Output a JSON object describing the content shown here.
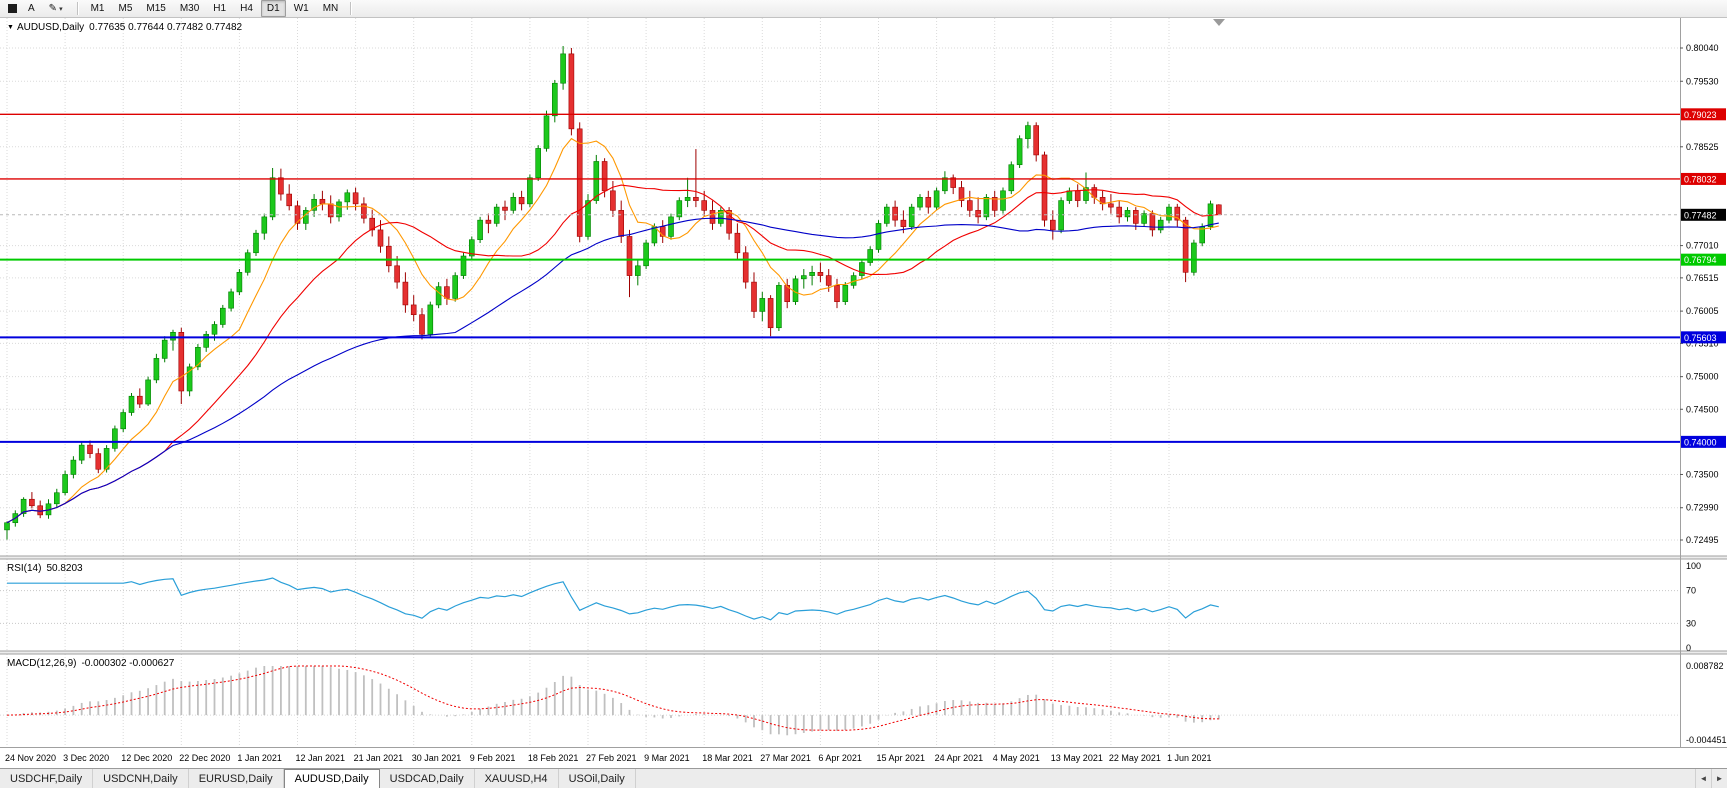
{
  "toolbar": {
    "font_button": "A",
    "draw_button": "✎",
    "dropdown_caret": "▾",
    "timeframes": [
      "M1",
      "M5",
      "M15",
      "M30",
      "H1",
      "H4",
      "D1",
      "W1",
      "MN"
    ],
    "active_timeframe": "D1"
  },
  "chart": {
    "title": "AUDUSD,Daily",
    "ohlc": "0.77635 0.77644 0.77482 0.77482",
    "collapse_marker": "▼"
  },
  "chart_data": {
    "type": "candlestick",
    "symbol": "AUDUSD",
    "period": "Daily",
    "y_min": 0.72495,
    "y_max": 0.8004,
    "y_axis_labels": [
      "0.80040",
      "0.79530",
      "0.78525",
      "0.77010",
      "0.76515",
      "0.76005",
      "0.75510",
      "0.75000",
      "0.74500",
      "0.73500",
      "0.72990",
      "0.72495"
    ],
    "x_labels": [
      "24 Nov 2020",
      "3 Dec 2020",
      "12 Dec 2020",
      "22 Dec 2020",
      "1 Jan 2021",
      "12 Jan 2021",
      "21 Jan 2021",
      "30 Jan 2021",
      "9 Feb 2021",
      "18 Feb 2021",
      "27 Feb 2021",
      "9 Mar 2021",
      "18 Mar 2021",
      "27 Mar 2021",
      "6 Apr 2021",
      "15 Apr 2021",
      "24 Apr 2021",
      "4 May 2021",
      "13 May 2021",
      "22 May 2021",
      "1 Jun 2021"
    ],
    "bars_per_x_label": 7,
    "bull_color": "#1cc81c",
    "bear_color": "#e53030",
    "candles": [
      [
        0.7265,
        0.7278,
        0.725,
        0.7276
      ],
      [
        0.7276,
        0.7295,
        0.727,
        0.729
      ],
      [
        0.729,
        0.7315,
        0.7285,
        0.7312
      ],
      [
        0.7312,
        0.7323,
        0.7298,
        0.7302
      ],
      [
        0.7302,
        0.731,
        0.7283,
        0.7288
      ],
      [
        0.7288,
        0.7312,
        0.7282,
        0.7305
      ],
      [
        0.7305,
        0.7328,
        0.73,
        0.7322
      ],
      [
        0.7322,
        0.7356,
        0.7318,
        0.735
      ],
      [
        0.735,
        0.7378,
        0.7344,
        0.7372
      ],
      [
        0.7372,
        0.74,
        0.7366,
        0.7395
      ],
      [
        0.7395,
        0.7402,
        0.7375,
        0.7382
      ],
      [
        0.7382,
        0.739,
        0.7352,
        0.7358
      ],
      [
        0.7358,
        0.7395,
        0.7353,
        0.739
      ],
      [
        0.739,
        0.7425,
        0.7385,
        0.742
      ],
      [
        0.742,
        0.745,
        0.7415,
        0.7445
      ],
      [
        0.7445,
        0.7475,
        0.744,
        0.747
      ],
      [
        0.747,
        0.7482,
        0.7452,
        0.7458
      ],
      [
        0.7458,
        0.75,
        0.7455,
        0.7495
      ],
      [
        0.7495,
        0.7535,
        0.749,
        0.7528
      ],
      [
        0.7528,
        0.7562,
        0.7522,
        0.7556
      ],
      [
        0.7556,
        0.7572,
        0.754,
        0.7568
      ],
      [
        0.7568,
        0.7575,
        0.7458,
        0.7478
      ],
      [
        0.7478,
        0.752,
        0.747,
        0.7515
      ],
      [
        0.7515,
        0.755,
        0.751,
        0.7545
      ],
      [
        0.7545,
        0.757,
        0.7538,
        0.7565
      ],
      [
        0.7565,
        0.7585,
        0.7555,
        0.758
      ],
      [
        0.758,
        0.761,
        0.7575,
        0.7605
      ],
      [
        0.7605,
        0.7635,
        0.76,
        0.763
      ],
      [
        0.763,
        0.7665,
        0.7625,
        0.766
      ],
      [
        0.766,
        0.7695,
        0.7655,
        0.769
      ],
      [
        0.769,
        0.7725,
        0.7685,
        0.772
      ],
      [
        0.772,
        0.775,
        0.771,
        0.7745
      ],
      [
        0.7745,
        0.782,
        0.774,
        0.7805
      ],
      [
        0.7805,
        0.7819,
        0.777,
        0.778
      ],
      [
        0.778,
        0.7795,
        0.7755,
        0.7762
      ],
      [
        0.7762,
        0.777,
        0.7725,
        0.7735
      ],
      [
        0.7735,
        0.776,
        0.7725,
        0.7755
      ],
      [
        0.7755,
        0.778,
        0.7745,
        0.7772
      ],
      [
        0.7772,
        0.7785,
        0.7755,
        0.7765
      ],
      [
        0.7765,
        0.7778,
        0.7735,
        0.7745
      ],
      [
        0.7745,
        0.7772,
        0.7738,
        0.7768
      ],
      [
        0.7768,
        0.7787,
        0.7756,
        0.7782
      ],
      [
        0.7782,
        0.779,
        0.7755,
        0.7765
      ],
      [
        0.7765,
        0.7775,
        0.7735,
        0.7743
      ],
      [
        0.7743,
        0.7756,
        0.7715,
        0.7725
      ],
      [
        0.7725,
        0.774,
        0.769,
        0.77
      ],
      [
        0.77,
        0.7715,
        0.766,
        0.767
      ],
      [
        0.767,
        0.7685,
        0.7635,
        0.7645
      ],
      [
        0.7645,
        0.766,
        0.7598,
        0.761
      ],
      [
        0.761,
        0.7625,
        0.7585,
        0.7595
      ],
      [
        0.7595,
        0.7605,
        0.7557,
        0.7565
      ],
      [
        0.7565,
        0.7615,
        0.756,
        0.761
      ],
      [
        0.761,
        0.7645,
        0.7605,
        0.7638
      ],
      [
        0.7638,
        0.765,
        0.761,
        0.762
      ],
      [
        0.762,
        0.766,
        0.7615,
        0.7655
      ],
      [
        0.7655,
        0.769,
        0.765,
        0.7685
      ],
      [
        0.7685,
        0.7715,
        0.768,
        0.771
      ],
      [
        0.771,
        0.7745,
        0.7705,
        0.774
      ],
      [
        0.774,
        0.775,
        0.772,
        0.7735
      ],
      [
        0.7735,
        0.7765,
        0.773,
        0.776
      ],
      [
        0.776,
        0.777,
        0.774,
        0.7755
      ],
      [
        0.7755,
        0.7782,
        0.775,
        0.7775
      ],
      [
        0.7775,
        0.7785,
        0.7755,
        0.7765
      ],
      [
        0.7765,
        0.781,
        0.776,
        0.7805
      ],
      [
        0.7805,
        0.7855,
        0.78,
        0.785
      ],
      [
        0.785,
        0.7908,
        0.7845,
        0.79
      ],
      [
        0.79,
        0.7955,
        0.789,
        0.795
      ],
      [
        0.795,
        0.8007,
        0.794,
        0.7995
      ],
      [
        0.7995,
        0.8004,
        0.787,
        0.788
      ],
      [
        0.788,
        0.789,
        0.7706,
        0.7715
      ],
      [
        0.7715,
        0.778,
        0.771,
        0.777
      ],
      [
        0.777,
        0.784,
        0.7765,
        0.783
      ],
      [
        0.783,
        0.7835,
        0.7775,
        0.7785
      ],
      [
        0.7785,
        0.78,
        0.7745,
        0.7755
      ],
      [
        0.7755,
        0.777,
        0.7705,
        0.7715
      ],
      [
        0.7715,
        0.7725,
        0.7622,
        0.7655
      ],
      [
        0.7655,
        0.768,
        0.764,
        0.767
      ],
      [
        0.767,
        0.771,
        0.7665,
        0.7705
      ],
      [
        0.7705,
        0.7735,
        0.77,
        0.773
      ],
      [
        0.773,
        0.774,
        0.7705,
        0.7715
      ],
      [
        0.7715,
        0.775,
        0.771,
        0.7745
      ],
      [
        0.7745,
        0.7775,
        0.774,
        0.777
      ],
      [
        0.777,
        0.7805,
        0.776,
        0.7775
      ],
      [
        0.7775,
        0.7849,
        0.776,
        0.777
      ],
      [
        0.777,
        0.7785,
        0.7745,
        0.7755
      ],
      [
        0.7755,
        0.777,
        0.7725,
        0.7735
      ],
      [
        0.7735,
        0.776,
        0.773,
        0.7755
      ],
      [
        0.7755,
        0.776,
        0.771,
        0.772
      ],
      [
        0.772,
        0.7735,
        0.768,
        0.769
      ],
      [
        0.769,
        0.77,
        0.7635,
        0.7645
      ],
      [
        0.7645,
        0.766,
        0.759,
        0.76
      ],
      [
        0.76,
        0.763,
        0.7585,
        0.762
      ],
      [
        0.762,
        0.7625,
        0.7562,
        0.7575
      ],
      [
        0.7575,
        0.7645,
        0.757,
        0.764
      ],
      [
        0.764,
        0.765,
        0.7605,
        0.7615
      ],
      [
        0.7615,
        0.7655,
        0.761,
        0.765
      ],
      [
        0.765,
        0.7665,
        0.7635,
        0.7655
      ],
      [
        0.7655,
        0.767,
        0.764,
        0.766
      ],
      [
        0.766,
        0.7675,
        0.7645,
        0.7655
      ],
      [
        0.7655,
        0.7665,
        0.763,
        0.764
      ],
      [
        0.764,
        0.765,
        0.7605,
        0.7615
      ],
      [
        0.7615,
        0.7645,
        0.761,
        0.764
      ],
      [
        0.764,
        0.766,
        0.7635,
        0.7655
      ],
      [
        0.7655,
        0.768,
        0.765,
        0.7675
      ],
      [
        0.7675,
        0.77,
        0.767,
        0.7695
      ],
      [
        0.7695,
        0.774,
        0.769,
        0.7735
      ],
      [
        0.7735,
        0.7765,
        0.773,
        0.776
      ],
      [
        0.776,
        0.777,
        0.773,
        0.774
      ],
      [
        0.774,
        0.7755,
        0.772,
        0.773
      ],
      [
        0.773,
        0.7765,
        0.7725,
        0.776
      ],
      [
        0.776,
        0.778,
        0.7755,
        0.7775
      ],
      [
        0.7775,
        0.7785,
        0.775,
        0.776
      ],
      [
        0.776,
        0.779,
        0.7755,
        0.7785
      ],
      [
        0.7785,
        0.7815,
        0.778,
        0.7805
      ],
      [
        0.7805,
        0.781,
        0.778,
        0.779
      ],
      [
        0.779,
        0.78,
        0.776,
        0.777
      ],
      [
        0.777,
        0.7785,
        0.7745,
        0.7755
      ],
      [
        0.7755,
        0.7775,
        0.7735,
        0.7745
      ],
      [
        0.7745,
        0.778,
        0.774,
        0.7775
      ],
      [
        0.7775,
        0.7785,
        0.7745,
        0.7755
      ],
      [
        0.7755,
        0.779,
        0.775,
        0.7785
      ],
      [
        0.7785,
        0.783,
        0.778,
        0.7825
      ],
      [
        0.7825,
        0.787,
        0.782,
        0.7865
      ],
      [
        0.7865,
        0.7891,
        0.785,
        0.7885
      ],
      [
        0.7885,
        0.789,
        0.783,
        0.784
      ],
      [
        0.784,
        0.7845,
        0.773,
        0.774
      ],
      [
        0.774,
        0.7755,
        0.771,
        0.7725
      ],
      [
        0.7725,
        0.7775,
        0.772,
        0.777
      ],
      [
        0.777,
        0.779,
        0.7765,
        0.7785
      ],
      [
        0.7785,
        0.7795,
        0.776,
        0.777
      ],
      [
        0.777,
        0.7813,
        0.7765,
        0.779
      ],
      [
        0.779,
        0.7795,
        0.7765,
        0.7775
      ],
      [
        0.7775,
        0.7785,
        0.7755,
        0.7765
      ],
      [
        0.7765,
        0.778,
        0.775,
        0.776
      ],
      [
        0.776,
        0.777,
        0.7735,
        0.7745
      ],
      [
        0.7745,
        0.776,
        0.7738,
        0.7755
      ],
      [
        0.7755,
        0.776,
        0.7725,
        0.7735
      ],
      [
        0.7735,
        0.7755,
        0.773,
        0.775
      ],
      [
        0.775,
        0.7755,
        0.7715,
        0.7725
      ],
      [
        0.7725,
        0.7745,
        0.772,
        0.774
      ],
      [
        0.774,
        0.7765,
        0.7735,
        0.776
      ],
      [
        0.776,
        0.7765,
        0.773,
        0.774
      ],
      [
        0.774,
        0.7745,
        0.7645,
        0.766
      ],
      [
        0.766,
        0.771,
        0.7655,
        0.7705
      ],
      [
        0.7705,
        0.7735,
        0.77,
        0.773
      ],
      [
        0.773,
        0.777,
        0.7725,
        0.7765
      ],
      [
        0.77635,
        0.77644,
        0.77482,
        0.77482
      ]
    ],
    "moving_averages": [
      {
        "name": "ma-fast",
        "period": 8,
        "color": "#ff9800"
      },
      {
        "name": "ma-medium",
        "period": 20,
        "color": "#f00000"
      },
      {
        "name": "ma-slow",
        "period": 55,
        "color": "#0000c8"
      }
    ],
    "horizontal_lines": [
      {
        "price": 0.79023,
        "label": "0.79023",
        "color": "#dd0000",
        "width": 1.4
      },
      {
        "price": 0.78032,
        "label": "0.78032",
        "color": "#dd0000",
        "width": 1.4
      },
      {
        "price": 0.76794,
        "label": "0.76794",
        "color": "#00ca00",
        "width": 2
      },
      {
        "price": 0.75603,
        "label": "0.75603",
        "color": "#0000dd",
        "width": 2
      },
      {
        "price": 0.74,
        "label": "0.74000",
        "color": "#0000dd",
        "width": 2
      }
    ],
    "current_price": {
      "value": 0.77482,
      "label": "0.77482",
      "badge_color": "#000000"
    },
    "rsi": {
      "label": "RSI(14)",
      "value": "50.8203",
      "period": 14,
      "color": "#2a9fd8",
      "axis_labels": [
        "100",
        "70",
        "30",
        "0"
      ],
      "levels": [
        70,
        30
      ]
    },
    "macd": {
      "label": "MACD(12,26,9)",
      "values": "-0.000302 -0.000627",
      "fast": 12,
      "slow": 26,
      "signal": 9,
      "max_label": "0.008782",
      "min_label": "-0.004451",
      "scale_max": 0.008782,
      "scale_min": -0.004451,
      "hist_color": "#c0c0c0",
      "signal_color": "#f00000"
    }
  },
  "tabs": {
    "items": [
      "USDCHF,Daily",
      "USDCNH,Daily",
      "EURUSD,Daily",
      "AUDUSD,Daily",
      "USDCAD,Daily",
      "XAUUSD,H4",
      "USOil,Daily"
    ],
    "active_index": 3,
    "scroll_left": "◄",
    "scroll_right": "►"
  }
}
